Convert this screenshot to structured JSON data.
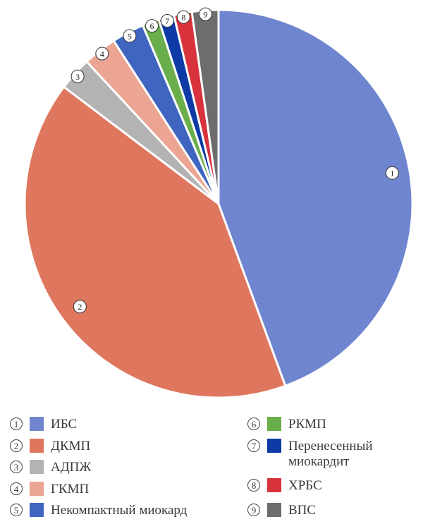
{
  "chart_data": {
    "type": "pie",
    "title": "",
    "start_angle_deg": 0,
    "direction": "clockwise",
    "slices": [
      {
        "marker": "1",
        "label": "ИБС",
        "value": 44.4,
        "color": "#6f85cf"
      },
      {
        "marker": "2",
        "label": "ДКМП",
        "value": 40.9,
        "color": "#df765e"
      },
      {
        "marker": "3",
        "label": "АДПЖ",
        "value": 2.8,
        "color": "#b3b3b3"
      },
      {
        "marker": "4",
        "label": "ГКМП",
        "value": 2.8,
        "color": "#eba592"
      },
      {
        "marker": "5",
        "label": "Некомпактный миокард",
        "value": 2.7,
        "color": "#3f65c0"
      },
      {
        "marker": "6",
        "label": "РКМП",
        "value": 1.4,
        "color": "#6aad4b"
      },
      {
        "marker": "7",
        "label": "Перенесенный миокардит",
        "value": 1.3,
        "color": "#0d3aa5"
      },
      {
        "marker": "8",
        "label": "ХРБС",
        "value": 1.5,
        "color": "#d8323c"
      },
      {
        "marker": "9",
        "label": "ВПС",
        "value": 2.2,
        "color": "#6d6d6d"
      }
    ],
    "legend_placement": "bottom"
  }
}
